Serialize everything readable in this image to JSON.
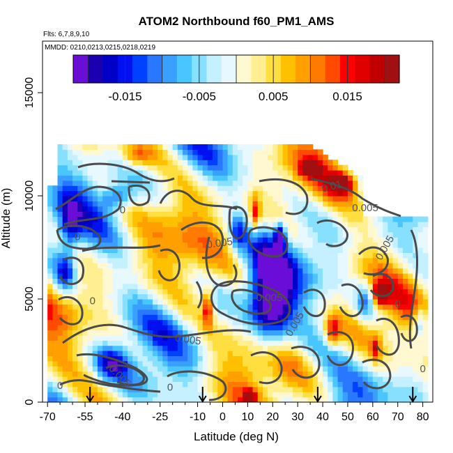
{
  "chart_data": {
    "type": "heatmap",
    "title": "ATOM2 Northbound f60_PM1_AMS",
    "flights_text": "Flts: 6,7,8,9,10",
    "dates_text": "MMDD: 0210,0213,0215,0218,0219",
    "xlabel": "Latitude (deg N)",
    "ylabel": "Altitude (m)",
    "xlim": [
      -72,
      84
    ],
    "ylim": [
      0,
      17500
    ],
    "x_ticks": [
      -70,
      -55,
      -40,
      -25,
      -10,
      0,
      10,
      20,
      30,
      40,
      50,
      60,
      70,
      80
    ],
    "x_tick_labels": [
      "-70",
      "-55",
      "-40",
      "-25",
      "-10",
      "0",
      "10",
      "20",
      "30",
      "40",
      "50",
      "60",
      "70",
      "80"
    ],
    "x_minor_ticks": [
      -65,
      -60,
      -50,
      -45,
      -35,
      -30,
      -20,
      -15,
      -5,
      5,
      15,
      25,
      35,
      45,
      55,
      65,
      75
    ],
    "y_ticks": [
      0,
      5000,
      10000,
      15000
    ],
    "y_tick_labels": [
      "0",
      "5000",
      "10000",
      "15000"
    ],
    "colorbar": {
      "min": -0.022,
      "max": 0.022,
      "step": 0.002,
      "tick_values": [
        -0.015,
        -0.005,
        0.005,
        0.015
      ],
      "tick_labels": [
        "-0.015",
        "-0.005",
        "0.005",
        "0.015"
      ],
      "colors": [
        "#6a0dd6",
        "#1a00b0",
        "#0000c8",
        "#0010f0",
        "#0040ff",
        "#2a78ff",
        "#3aa0ff",
        "#4ac6ff",
        "#88e0ff",
        "#c4f0ff",
        "#e8f8ff",
        "#fff8d0",
        "#ffef90",
        "#ffdf40",
        "#ffc000",
        "#ffa000",
        "#ff7a00",
        "#ff4a00",
        "#ff0000",
        "#e00000",
        "#c00000",
        "#a01010"
      ]
    },
    "contour_labels": [
      {
        "text": "0.01",
        "x": 44,
        "y": 10300,
        "rotate": -15
      },
      {
        "text": "0.005",
        "x": 57,
        "y": 9250,
        "rotate": 0
      },
      {
        "text": "0.005",
        "x": 66,
        "y": 7400,
        "rotate": -60
      },
      {
        "text": "0.005",
        "x": -1,
        "y": 7550,
        "rotate": -8
      },
      {
        "text": "0.005",
        "x": -14,
        "y": 2870,
        "rotate": 8
      },
      {
        "text": "0.005",
        "x": -42,
        "y": 1150,
        "rotate": 45
      },
      {
        "text": "0",
        "x": -40,
        "y": 9150,
        "rotate": 0
      },
      {
        "text": "0",
        "x": -58,
        "y": 7850,
        "rotate": 0
      },
      {
        "text": "0",
        "x": -52,
        "y": 4750,
        "rotate": 0
      },
      {
        "text": "0",
        "x": -65,
        "y": 650,
        "rotate": 0
      },
      {
        "text": "0",
        "x": -21,
        "y": 550,
        "rotate": 0
      },
      {
        "text": "0",
        "x": 70,
        "y": 4600,
        "rotate": 0
      },
      {
        "text": "0",
        "x": 80,
        "y": 1450,
        "rotate": 0
      },
      {
        "text": "0.005",
        "x": 30,
        "y": 3700,
        "rotate": -60
      },
      {
        "text": "-0.005",
        "x": 18,
        "y": 4900,
        "rotate": 0
      }
    ],
    "flight_markers_lat": [
      -53,
      -8,
      38,
      76
    ],
    "data_extent": {
      "lat_min": -72,
      "lat_max": 82,
      "alt_max_south": 12300,
      "alt_max_north": 11200
    }
  }
}
